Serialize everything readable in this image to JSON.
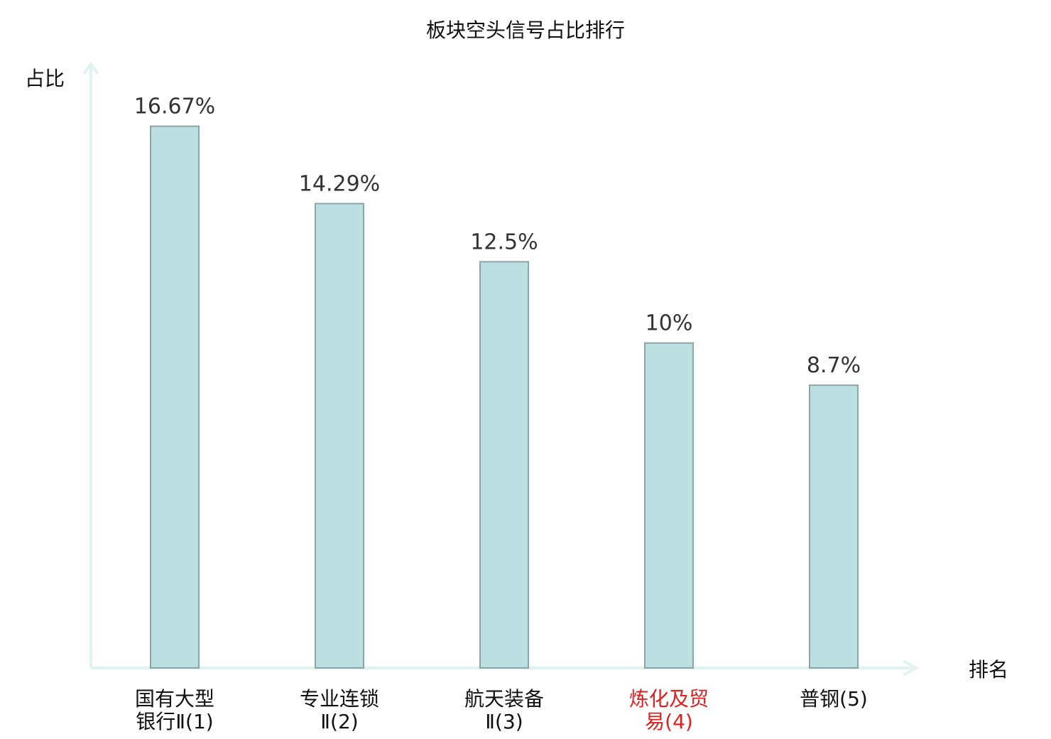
{
  "chart_data": {
    "type": "bar",
    "title": "板块空头信号占比排行",
    "ylabel": "占比",
    "xlabel": "排名",
    "ylim": [
      0,
      18.5
    ],
    "categories": [
      {
        "line1": "国有大型",
        "line2": "银行Ⅱ(1)",
        "highlight": false
      },
      {
        "line1": "专业连锁",
        "line2": "Ⅱ(2)",
        "highlight": false
      },
      {
        "line1": "航天装备",
        "line2": "Ⅱ(3)",
        "highlight": false
      },
      {
        "line1": "炼化及贸",
        "line2": "易(4)",
        "highlight": true
      },
      {
        "line1": "普钢(5)",
        "line2": "",
        "highlight": false
      }
    ],
    "values": [
      16.67,
      14.29,
      12.5,
      10,
      8.7
    ],
    "value_labels": [
      "16.67%",
      "14.29%",
      "12.5%",
      "10%",
      "8.7%"
    ],
    "grid": false,
    "colors": {
      "bar_fill": "#bce0e1",
      "bar_stroke": "#8aa6a6",
      "axis": "#e1f3f1",
      "highlight_text": "#e02020",
      "normal_text": "#111111"
    }
  }
}
